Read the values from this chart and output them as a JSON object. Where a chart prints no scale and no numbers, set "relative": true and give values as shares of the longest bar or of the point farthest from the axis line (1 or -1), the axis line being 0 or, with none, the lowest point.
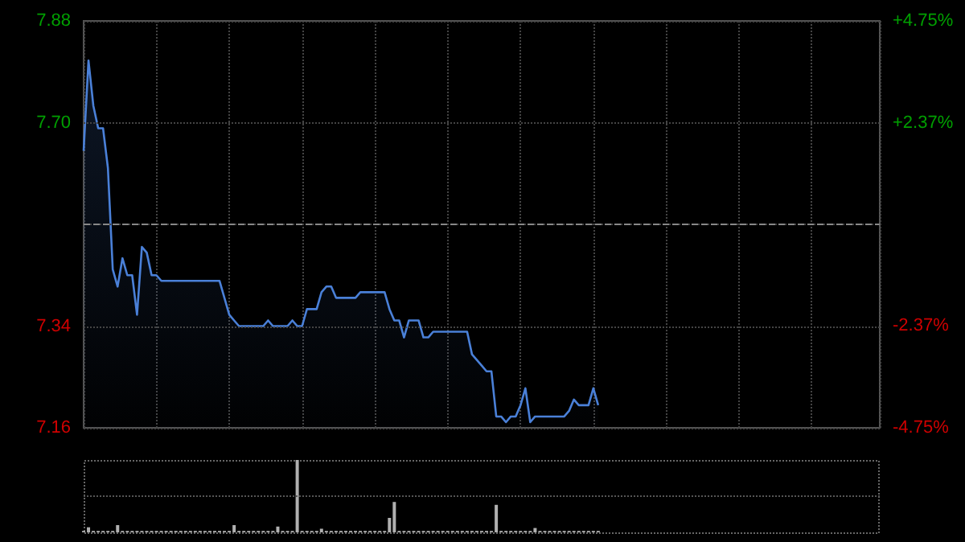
{
  "chart_data": [
    {
      "type": "area",
      "categories": [
        null,
        null,
        null,
        null,
        null,
        null,
        null,
        null,
        null,
        null,
        null,
        null,
        null,
        null,
        null,
        null,
        null,
        null,
        null,
        null,
        null,
        null,
        null,
        null,
        null,
        null,
        null,
        null,
        null,
        null,
        null,
        null,
        null,
        null,
        null,
        null,
        null,
        null,
        null,
        null,
        null,
        null,
        null,
        null,
        null,
        null,
        null,
        null,
        null,
        null,
        null,
        null,
        null,
        null,
        null,
        null,
        null,
        null,
        null,
        null,
        null,
        null,
        null,
        null,
        null,
        null,
        null,
        null,
        null,
        null,
        null,
        null,
        null,
        null,
        null,
        null,
        null,
        null,
        null,
        null,
        null,
        null,
        null,
        null,
        null,
        null,
        null,
        null,
        null,
        null,
        null,
        null,
        null,
        null,
        null,
        null,
        null,
        null,
        null,
        null,
        null,
        null,
        null,
        null,
        null,
        null,
        null
      ],
      "series": [
        {
          "color": "#4a80d8",
          "values": [
            7.65,
            7.81,
            7.73,
            7.69,
            7.69,
            7.62,
            7.44,
            7.41,
            7.46,
            7.43,
            7.43,
            7.36,
            7.48,
            7.47,
            7.43,
            7.43,
            7.42,
            7.42,
            7.42,
            7.42,
            7.42,
            7.42,
            7.42,
            7.42,
            7.42,
            7.42,
            7.42,
            7.42,
            7.42,
            7.39,
            7.36,
            7.35,
            7.34,
            7.34,
            7.34,
            7.34,
            7.34,
            7.34,
            7.35,
            7.34,
            7.34,
            7.34,
            7.34,
            7.35,
            7.34,
            7.34,
            7.37,
            7.37,
            7.37,
            7.4,
            7.41,
            7.41,
            7.39,
            7.39,
            7.39,
            7.39,
            7.39,
            7.4,
            7.4,
            7.4,
            7.4,
            7.4,
            7.4,
            7.37,
            7.35,
            7.35,
            7.32,
            7.35,
            7.35,
            7.35,
            7.32,
            7.32,
            7.33,
            7.33,
            7.33,
            7.33,
            7.33,
            7.33,
            7.33,
            7.33,
            7.29,
            7.28,
            7.27,
            7.26,
            7.26,
            7.18,
            7.18,
            7.17,
            7.18,
            7.18,
            7.2,
            7.23,
            7.17,
            7.18,
            7.18,
            7.18,
            7.18,
            7.18,
            7.18,
            7.18,
            7.19,
            7.21,
            7.2,
            7.2,
            7.2,
            7.23,
            7.2
          ]
        }
      ],
      "ylim": [
        7.16,
        7.88
      ],
      "yticks": [
        7.16,
        7.34,
        {
          "value": 7.52,
          "label": null
        },
        {
          "value": 7.7,
          "label": "7.70"
        },
        7.88
      ],
      "y2lim": [
        -4.75,
        4.75
      ],
      "y2ticks": [
        {
          "value": -4.75,
          "label": "-4.75%"
        },
        {
          "value": -2.37,
          "label": "-2.37%"
        },
        {
          "value": 2.37,
          "label": "+2.37%"
        },
        {
          "value": 4.75,
          "label": "+4.75%"
        }
      ],
      "ref_lines": [
        {
          "axis": "y",
          "value": 7.52,
          "label": null,
          "color": "#888888",
          "line_style": "dashed"
        }
      ],
      "grid": true,
      "tick_labels": "y"
    },
    {
      "type": "bar",
      "relative": true,
      "categories": [
        null,
        null,
        null,
        null,
        null,
        null,
        null,
        null,
        null,
        null,
        null,
        null,
        null,
        null,
        null,
        null,
        null,
        null,
        null,
        null,
        null,
        null,
        null,
        null,
        null,
        null,
        null,
        null,
        null,
        null,
        null,
        null,
        null,
        null,
        null,
        null,
        null,
        null,
        null,
        null,
        null,
        null,
        null,
        null,
        null,
        null,
        null,
        null,
        null,
        null,
        null,
        null,
        null,
        null,
        null,
        null,
        null,
        null,
        null,
        null,
        null,
        null,
        null,
        null,
        null,
        null,
        null,
        null,
        null,
        null,
        null,
        null,
        null,
        null,
        null,
        null,
        null,
        null,
        null,
        null,
        null,
        null,
        null,
        null,
        null,
        null,
        null,
        null,
        null,
        null,
        null,
        null,
        null,
        null,
        null,
        null,
        null,
        null,
        null,
        null,
        null,
        null,
        null,
        null,
        null,
        null,
        null
      ],
      "series": [
        {
          "color": "#b0b0b0",
          "values": [
            0.02,
            0.07,
            0.02,
            0.02,
            0.02,
            0.02,
            0.02,
            0.1,
            0.02,
            0.02,
            0.02,
            0.02,
            0.02,
            0.02,
            0.02,
            0.02,
            0.02,
            0.02,
            0.02,
            0.02,
            0.02,
            0.02,
            0.02,
            0.02,
            0.02,
            0.02,
            0.02,
            0.02,
            0.02,
            0.02,
            0.02,
            0.1,
            0.02,
            0.02,
            0.02,
            0.02,
            0.02,
            0.02,
            0.02,
            0.02,
            0.08,
            0.02,
            0.02,
            0.02,
            1,
            0.02,
            0.02,
            0.02,
            0.02,
            0.05,
            0.02,
            0.02,
            0.02,
            0.02,
            0.02,
            0.02,
            0.02,
            0.02,
            0.02,
            0.02,
            0.02,
            0.02,
            0.02,
            0.2,
            0.42,
            0.02,
            0.02,
            0.02,
            0.02,
            0.02,
            0.02,
            0.02,
            0.02,
            0.02,
            0.02,
            0.02,
            0.02,
            0.02,
            0.02,
            0.02,
            0.02,
            0.02,
            0.02,
            0.02,
            0.02,
            0.38,
            0.02,
            0.02,
            0.02,
            0.02,
            0.02,
            0.02,
            0.02,
            0.06,
            0.02,
            0.02,
            0.02,
            0.02,
            0.02,
            0.02,
            0.02,
            0.02,
            0.02,
            0.02,
            0.02,
            0.02,
            0.02
          ]
        }
      ],
      "ref_lines": [
        {
          "axis": "y",
          "value": 0.5,
          "label": null,
          "color": "#555555",
          "line_style": "dotted"
        }
      ],
      "tick_labels": false
    }
  ]
}
